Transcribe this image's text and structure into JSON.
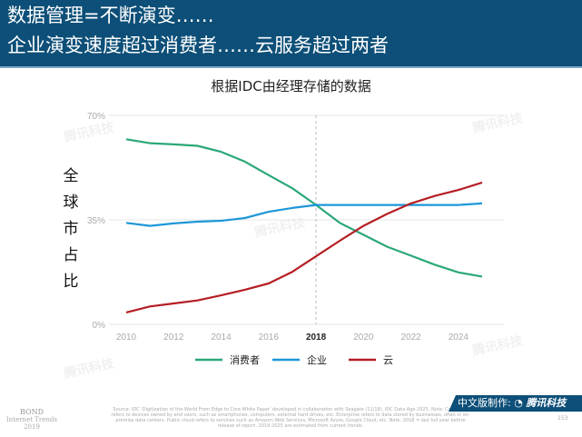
{
  "header": {
    "line1": "数据管理=不断演变……",
    "line2": "企业演变速度超过消费者……云服务超过两者"
  },
  "chart_data": {
    "type": "line",
    "title": "根据IDC由经理存储的数据",
    "ylabel": "全球市占比",
    "x": [
      2010,
      2011,
      2012,
      2013,
      2014,
      2015,
      2016,
      2017,
      2018,
      2019,
      2020,
      2021,
      2022,
      2023,
      2024,
      2025
    ],
    "xticks": [
      "2010",
      "2012",
      "2014",
      "2016",
      "2018",
      "2020",
      "2022",
      "2024"
    ],
    "highlight_x": "2018",
    "yticks": [
      "0%",
      "35%",
      "70%"
    ],
    "ylim": [
      0,
      70
    ],
    "grid": "horizontal",
    "legend": "bottom",
    "series": [
      {
        "name": "消费者",
        "color": "#2aa877",
        "values": [
          62,
          60.7,
          60.3,
          59.8,
          57.8,
          54.5,
          50,
          45.6,
          40,
          34,
          30,
          26,
          23,
          20,
          17.4,
          16
        ]
      },
      {
        "name": "企业",
        "color": "#1e97d8",
        "values": [
          34,
          33,
          33.8,
          34.4,
          34.7,
          35.6,
          37.7,
          39,
          40,
          40,
          40,
          40,
          40,
          40,
          40,
          40.5
        ]
      },
      {
        "name": "云",
        "color": "#b51e23",
        "values": [
          4,
          6,
          7,
          8,
          9.7,
          11.6,
          13.7,
          17.6,
          22.8,
          28,
          33,
          37,
          40.5,
          43,
          45,
          47.5
        ]
      }
    ]
  },
  "footer": {
    "brand": "BOND",
    "sub": "Internet Trends",
    "year": "2019",
    "source": "Source: IDC 'Digitization of the World From Edge to Core White Paper' developed in collaboration with Seagate (11/18), IDC Data Age 2025. Note: Consumer refers to devices owned by end users, such as smartphones, computers, external hard drives, etc. Enterprise refers to data stored by businesses, often in on-premise data centers. Public cloud refers to services such as Amazon Web Services, Microsoft Azure, Google Cloud, etc. Note: 2018 = last full year before release of report. 2019-2025 are estimated from current trends.",
    "badge_prefix": "中文版制作:",
    "badge_brand": "腾讯科技",
    "page": "153"
  },
  "watermark": "腾讯科技"
}
